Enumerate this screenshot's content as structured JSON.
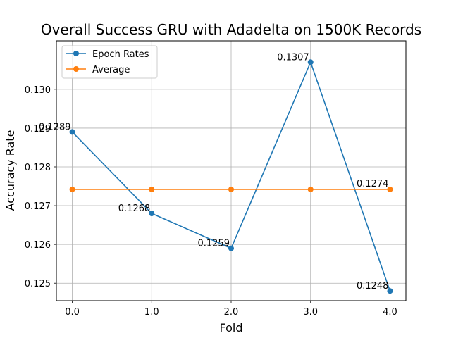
{
  "chart_data": {
    "type": "line",
    "title": "Overall Success GRU with Adadelta on 1500K Records",
    "xlabel": "Fold",
    "ylabel": "Accuracy Rate",
    "x": [
      0,
      1,
      2,
      3,
      4
    ],
    "xticks": [
      "0.0",
      "1.0",
      "2.0",
      "3.0",
      "4.0"
    ],
    "yticks": [
      "0.125",
      "0.126",
      "0.127",
      "0.128",
      "0.129",
      "0.130"
    ],
    "xlim": [
      -0.2,
      4.2
    ],
    "ylim": [
      0.12455,
      0.13125
    ],
    "grid": true,
    "legend_position": "top-left",
    "series": [
      {
        "name": "Epoch Rates",
        "color": "#1f77b4",
        "values": [
          0.1289,
          0.1268,
          0.1259,
          0.1307,
          0.1248
        ],
        "labels": [
          "0.1289",
          "0.1268",
          "0.1259",
          "0.1307",
          "0.1248"
        ]
      },
      {
        "name": "Average",
        "color": "#ff7f0e",
        "values": [
          0.12742,
          0.12742,
          0.12742,
          0.12742,
          0.12742
        ],
        "labels": [
          "0.1274"
        ]
      }
    ]
  }
}
